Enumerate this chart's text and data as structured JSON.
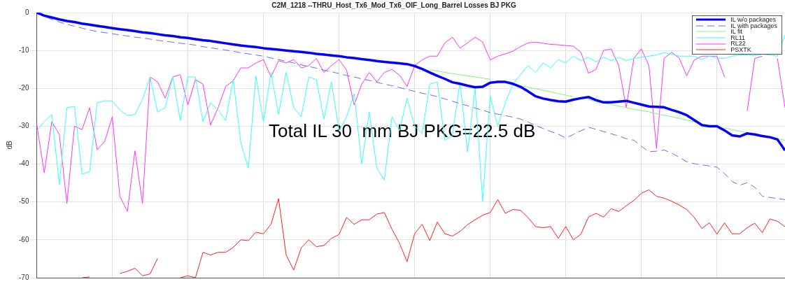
{
  "chart_data": {
    "type": "line",
    "title": "C2M_1218 --THRU_Host_Tx6_Mod_Tx6_OIF_Long_Barrel Losses BJ PKG",
    "ylabel": "dB",
    "annotations": [
      "Total IL 30  mm BJ PKG=22.5 dB"
    ],
    "categories": [
      null,
      null,
      null,
      null,
      null,
      null,
      null,
      null,
      null,
      null,
      null,
      null,
      null,
      null,
      null,
      null,
      null,
      null,
      null,
      null,
      null,
      null,
      null,
      null,
      null,
      null,
      null,
      null,
      null,
      null,
      null,
      null,
      null,
      null,
      null,
      null,
      null,
      null,
      null,
      null,
      null,
      null,
      null,
      null,
      null,
      null,
      null,
      null,
      null,
      null,
      null,
      null,
      null,
      null,
      null,
      null,
      null,
      null,
      null,
      null,
      null,
      null,
      null,
      null,
      null,
      null,
      null,
      null,
      null,
      null,
      null,
      null,
      null,
      null,
      null,
      null,
      null,
      null,
      null,
      null,
      null,
      null,
      null,
      null,
      null,
      null,
      null,
      null,
      null,
      null,
      null,
      null,
      null,
      null,
      null,
      null,
      null,
      null,
      null,
      null
    ],
    "ylim": [
      -70,
      0
    ],
    "yticks": [
      -70,
      -60,
      -50,
      -40,
      -30,
      -20,
      -10,
      0
    ],
    "tick_labels": "y",
    "grid": true,
    "legend": "top right",
    "line_style": "solid",
    "series": [
      {
        "name": "IL w/o packages",
        "color": "#0000ff",
        "values": [
          0,
          -0.8,
          -1.3,
          -1.8,
          -2.2,
          -2.5,
          -2.9,
          -3.2,
          -3.5,
          -3.8,
          -4.1,
          -4.4,
          -4.6,
          -4.9,
          -5.2,
          -5.4,
          -5.7,
          -6,
          -6.2,
          -6.5,
          -6.7,
          -7,
          -7.3,
          -7.5,
          -7.8,
          -8.1,
          -8.4,
          -8.7,
          -8.9,
          -9.1,
          -9.4,
          -9.6,
          -9.8,
          -10,
          -10.2,
          -10.4,
          -10.6,
          -10.9,
          -11.1,
          -11.3,
          -11.5,
          -11.8,
          -12,
          -12.3,
          -12.5,
          -12.8,
          -13,
          -13.2,
          -13.4,
          -13.6,
          -14.1,
          -14.9,
          -15.8,
          -16.7,
          -17.5,
          -18.4,
          -18.8,
          -19.3,
          -19.7,
          -19.6,
          -18.5,
          -18.3,
          -18.3,
          -18.8,
          -19.6,
          -20.8,
          -22.1,
          -22.7,
          -23.1,
          -23.4,
          -23.5,
          -23,
          -22.6,
          -22.3,
          -23.1,
          -23.7,
          -23.7,
          -23.5,
          -23.3,
          -23.8,
          -24.3,
          -24.8,
          -24.9,
          -25,
          -25.7,
          -26.3,
          -27.1,
          -28.4,
          -29.7,
          -30,
          -30,
          -31.1,
          -32.4,
          -32.7,
          -31.9,
          -32.2,
          -32.6,
          -32.9,
          -33.5,
          -36.4
        ]
      },
      {
        "name": "IL with packages",
        "color": "#6b6bff",
        "line_style": "dashed",
        "values": [
          0,
          -1,
          -1.8,
          -2.5,
          -3.1,
          -3.6,
          -4.1,
          -4.6,
          -5,
          -5.3,
          -5.6,
          -5.9,
          -6.2,
          -6.5,
          -6.7,
          -7,
          -7.3,
          -7.6,
          -7.8,
          -8.1,
          -8.3,
          -8.6,
          -9,
          -9.3,
          -9.6,
          -9.9,
          -10.2,
          -10.6,
          -10.9,
          -11.2,
          -11.5,
          -12,
          -12.4,
          -12.9,
          -13.3,
          -13.8,
          -14.2,
          -14.7,
          -15.2,
          -15.6,
          -16.1,
          -16.6,
          -17,
          -17.5,
          -17.9,
          -18.4,
          -18.9,
          -19.3,
          -19.8,
          -20.3,
          -20.8,
          -21.3,
          -21.7,
          -22.2,
          -22.8,
          -23.4,
          -24,
          -24.6,
          -25.2,
          -25.8,
          -26.4,
          -26.8,
          -27.2,
          -27.6,
          -28.1,
          -28.9,
          -29.8,
          -30.6,
          -31.4,
          -32.1,
          -33.1,
          -32.2,
          -31.2,
          -30.3,
          -30.8,
          -31.4,
          -32,
          -32.6,
          -33.3,
          -33.7,
          -35.3,
          -36.7,
          -36.6,
          -36.3,
          -37.1,
          -38.2,
          -39.4,
          -39.9,
          -40.2,
          -40.5,
          -40.8,
          -42.5,
          -44.6,
          -45.6,
          -44.9,
          -46.1,
          -48.5,
          -48.8,
          -49.1,
          -49.4
        ]
      },
      {
        "name": "IL fit",
        "color": "#80f080",
        "values": [
          null,
          null,
          null,
          null,
          null,
          null,
          null,
          null,
          null,
          null,
          null,
          null,
          null,
          null,
          null,
          null,
          null,
          null,
          null,
          null,
          null,
          null,
          null,
          null,
          null,
          null,
          null,
          null,
          null,
          null,
          null,
          null,
          null,
          null,
          null,
          null,
          null,
          null,
          null,
          null,
          null,
          null,
          null,
          null,
          null,
          null,
          null,
          null,
          null,
          null,
          null,
          null,
          -15.1,
          -15.4,
          -15.8,
          -16.1,
          -16.4,
          -16.7,
          -17,
          -17.3,
          -17.6,
          null,
          null,
          null,
          -19.3,
          -19.7,
          -20.1,
          -20.5,
          -20.9,
          -21.4,
          -21.8,
          -22.2,
          null,
          -23,
          -23.5,
          -23.9,
          -24.3,
          -24.7,
          -25.1,
          -25.5,
          -25.9,
          -26.2,
          -26.7,
          -27.1,
          -27.5,
          -27.9,
          -28.4,
          -28.8,
          null,
          null,
          null,
          -30.4,
          -30.9,
          -31.3,
          -31.7,
          null,
          null,
          null,
          -33.3,
          -33.7
        ]
      },
      {
        "name": "RL11",
        "color": "#33ffff",
        "values": [
          -31.2,
          -28.8,
          -26.9,
          -45.4,
          -25.1,
          -24.8,
          -42.7,
          -42,
          -23.8,
          -23.3,
          -23.3,
          -25.7,
          -27.2,
          -26.9,
          -22.9,
          -17,
          -26.3,
          -25.1,
          -17,
          -28.5,
          -17,
          -17,
          -28.8,
          -23.8,
          -25.7,
          -28.5,
          -17.7,
          -34.3,
          -41.1,
          -16.7,
          -28.8,
          -15.8,
          -26.9,
          -15.8,
          -25.1,
          -27.5,
          -17,
          -17.7,
          -28.1,
          -18.3,
          -31.2,
          -27.5,
          -21.4,
          -39.9,
          -26.3,
          -41.1,
          -44.2,
          -27.5,
          -31.2,
          -22.6,
          -30,
          -31.9,
          -18.9,
          -18.3,
          -33.7,
          -32.5,
          -18.3,
          -36.8,
          -20.1,
          -49.8,
          -22,
          -30,
          -23.8,
          -18.9,
          -16.4,
          -14,
          -15.8,
          -13.3,
          -14.6,
          -12.4,
          -13.3,
          -11.5,
          -12.7,
          -11.8,
          -13,
          -11.8,
          -12.7,
          -11.8,
          -12.7,
          -12.1,
          -11.8,
          -11.5,
          -11.2,
          -10.6,
          -11,
          -11.5,
          -11.5,
          -11.5,
          -12.4,
          -11.5,
          -12,
          -12.1,
          -11.5,
          -11.2,
          -11.2,
          -11.4,
          -11,
          -11.2,
          -11.5,
          -5.9
        ]
      },
      {
        "name": "RL22",
        "color": "#ff33ff",
        "values": [
          -29.4,
          -42.3,
          -28.8,
          -32.2,
          -50.4,
          -30,
          -30.9,
          -25.1,
          -36.2,
          -34,
          -27.5,
          -48.5,
          -52.5,
          -36.5,
          -50.4,
          -17,
          -18.3,
          -22.6,
          -17,
          -16.4,
          -24.4,
          -17.7,
          -18.9,
          -29.7,
          -25.1,
          -19.5,
          -18,
          -14.6,
          -14.6,
          -13.3,
          -12.4,
          -17,
          -12.7,
          -13.3,
          -12.4,
          -14.6,
          -14,
          -12.1,
          -15.8,
          -14,
          -12.4,
          -15.2,
          -24.4,
          -18.9,
          -15.8,
          -18.3,
          -15.8,
          -15,
          -16.5,
          -19.5,
          -14,
          -12.5,
          -11.5,
          -11.5,
          -8,
          -6.5,
          -9.4,
          -8,
          -6.5,
          -7.8,
          -12.5,
          -11.5,
          -10.9,
          -10.2,
          -9,
          -8,
          -7.8,
          -8.1,
          -8.4,
          -8.5,
          -8.7,
          -8.9,
          -10.5,
          -16,
          -15,
          -10,
          -9.6,
          -14,
          -25.1,
          -12.1,
          -9.6,
          -14,
          -35.9,
          -12.1,
          -10.5,
          -12,
          -16.7,
          -12.5,
          -11.5,
          -11.5,
          -11.5,
          -17,
          null,
          null,
          -26,
          -12.1,
          -11.5,
          null,
          -12.1,
          -25.1
        ]
      },
      {
        "name": "PSXTK",
        "color": "#ff2020",
        "values": [
          null,
          null,
          null,
          null,
          null,
          null,
          -70,
          -69.8,
          null,
          null,
          null,
          -68.9,
          -68.3,
          -67.5,
          -69.5,
          -69,
          -64.9,
          null,
          null,
          -70,
          -69.5,
          -70,
          -63.3,
          -64,
          -63.3,
          -63.3,
          -62,
          -60,
          -60.2,
          -58,
          -58.4,
          -55.9,
          -49.1,
          -64,
          -68,
          -62.1,
          -60,
          -61.8,
          -61.5,
          -59.6,
          -58.6,
          -54.1,
          -55.9,
          -54.7,
          -54.7,
          -53.2,
          -52.8,
          -57.2,
          -60.9,
          -65.8,
          -58.4,
          -55.9,
          -60.2,
          -55.3,
          -58.4,
          -59,
          -57.8,
          -56,
          -54.7,
          -53.5,
          -52.8,
          -49.4,
          -53,
          -52,
          -52.2,
          -54.1,
          -56.5,
          -56.8,
          -56.5,
          -59.6,
          -56.5,
          -60,
          -58.5,
          -54,
          -53,
          -54,
          -51.8,
          -52.5,
          -51,
          -49.6,
          -47.7,
          -46.8,
          -48.5,
          -49,
          -49.8,
          -50.8,
          -52,
          -54.1,
          -57,
          -55.5,
          -58.5,
          -55.5,
          -58.4,
          -58.4,
          -56.8,
          -55.6,
          -58.1,
          -54.5,
          -55.1,
          -56.5
        ]
      }
    ]
  }
}
